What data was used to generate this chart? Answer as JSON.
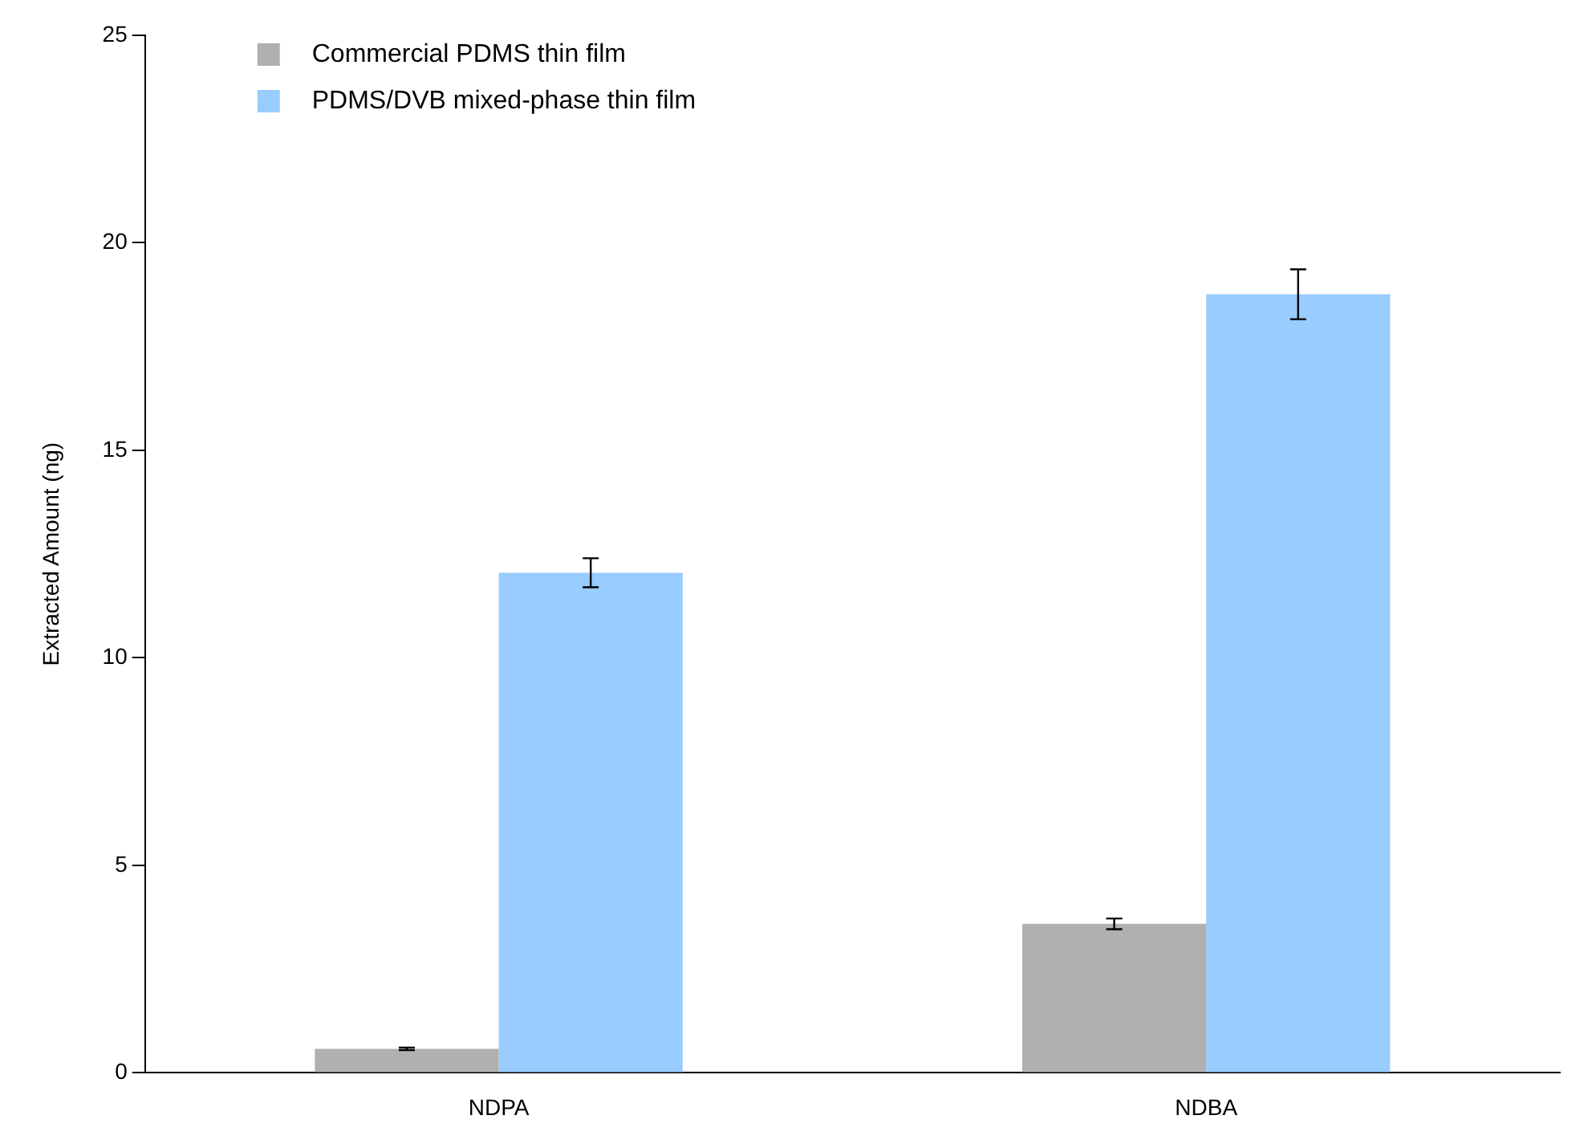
{
  "chart_data": {
    "type": "bar",
    "ylabel": "Extracted Amount (ng)",
    "categories": [
      "NDPA",
      "NDBA"
    ],
    "series": [
      {
        "name": "Commercial PDMS thin film",
        "color": "#b0b0b0",
        "values": [
          0.58,
          3.59
        ],
        "errors": [
          0.03,
          0.13
        ]
      },
      {
        "name": "PDMS/DVB mixed-phase thin film",
        "color": "#99ccff",
        "values": [
          12.05,
          18.76
        ],
        "errors": [
          0.35,
          0.6
        ]
      }
    ],
    "ylim": [
      0,
      25
    ],
    "yticks": [
      0,
      5,
      10,
      15,
      20,
      25
    ],
    "grid": false,
    "legend": "top left"
  }
}
